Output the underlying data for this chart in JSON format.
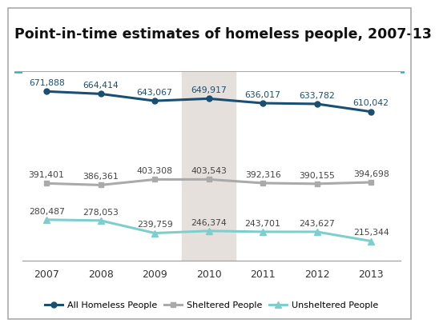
{
  "title": "Point-in-time estimates of homeless people, 2007-13",
  "years": [
    2007,
    2008,
    2009,
    2010,
    2011,
    2012,
    2013
  ],
  "all_homeless": [
    671888,
    664414,
    643067,
    649917,
    636017,
    633782,
    610042
  ],
  "sheltered": [
    391401,
    386361,
    403308,
    403543,
    392316,
    390155,
    394698
  ],
  "unsheltered": [
    280487,
    278053,
    239759,
    246374,
    243701,
    243627,
    215344
  ],
  "all_homeless_color": "#1a4f72",
  "sheltered_color": "#aaaaaa",
  "unsheltered_color": "#7ecece",
  "shade_x_start": 2009.5,
  "shade_x_end": 2010.5,
  "shade_color": "#e5e0db",
  "legend_labels": [
    "All Homeless People",
    "Sheltered People",
    "Unsheltered People"
  ],
  "title_fontsize": 12.5,
  "label_fontsize": 7.8,
  "tick_fontsize": 9,
  "legend_fontsize": 8,
  "border_color": "#aaaaaa",
  "teal_line_color": "#3aafaf",
  "title_color": "#111111",
  "line_width": 2.2,
  "all_labels": [
    "671,888",
    "664,414",
    "643,067",
    "649,917",
    "636,017",
    "633,782",
    "610,042"
  ],
  "sheltered_labels": [
    "391,401",
    "386,361",
    "403,308",
    "403,543",
    "392,316",
    "390,155",
    "394,698"
  ],
  "unsheltered_labels": [
    "280,487",
    "278,053",
    "239,759",
    "246,374",
    "243,701",
    "243,627",
    "215,344"
  ],
  "xlim": [
    2006.55,
    2013.55
  ],
  "ylim": [
    155000,
    730000
  ]
}
